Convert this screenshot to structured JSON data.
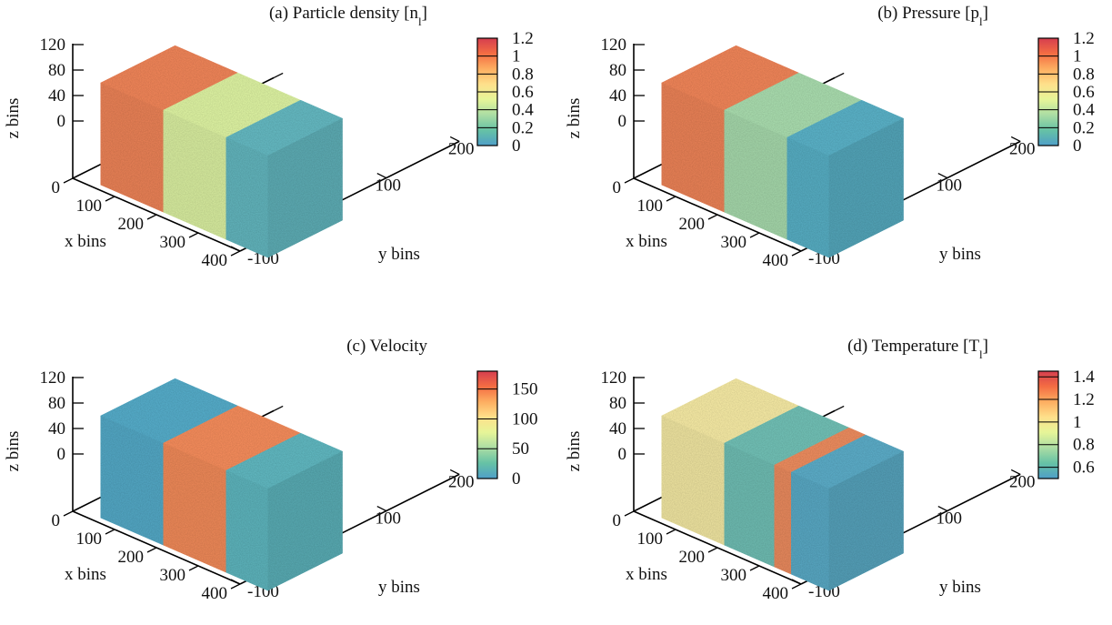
{
  "chart_data": [
    {
      "type": "3d-volume",
      "title": "(a) Particle density [n_l]",
      "title_main": "(a) Particle density [n",
      "title_sub": "l",
      "title_end": "]",
      "xlabel": "x bins",
      "ylabel": "y bins",
      "zlabel": "z bins",
      "x_ticks": [
        "0",
        "100",
        "200",
        "300",
        "400"
      ],
      "y_ticks": [
        "-100",
        "0",
        "100",
        "200"
      ],
      "z_ticks": [
        "0",
        "40",
        "80",
        "120"
      ],
      "colorbar": {
        "ticks": [
          "0",
          "0.2",
          "0.4",
          "0.6",
          "0.8",
          "1",
          "1.2"
        ],
        "range": [
          0,
          1.2
        ]
      },
      "sections": [
        {
          "x_range": [
            0,
            150
          ],
          "value": 1.0,
          "color": "#ec8358"
        },
        {
          "x_range": [
            150,
            300
          ],
          "value": 0.55,
          "color": "#d9eea0"
        },
        {
          "x_range": [
            300,
            400
          ],
          "value": 0.15,
          "color": "#64b6be"
        }
      ]
    },
    {
      "type": "3d-volume",
      "title": "(b) Pressure [p_l]",
      "title_main": "(b) Pressure [p",
      "title_sub": "l",
      "title_end": "]",
      "xlabel": "x bins",
      "ylabel": "y bins",
      "zlabel": "z bins",
      "x_ticks": [
        "0",
        "100",
        "200",
        "300",
        "400"
      ],
      "y_ticks": [
        "-100",
        "0",
        "100",
        "200"
      ],
      "z_ticks": [
        "0",
        "40",
        "80",
        "120"
      ],
      "colorbar": {
        "ticks": [
          "0",
          "0.2",
          "0.4",
          "0.6",
          "0.8",
          "1",
          "1.2"
        ],
        "range": [
          0,
          1.2
        ]
      },
      "sections": [
        {
          "x_range": [
            0,
            150
          ],
          "value": 1.0,
          "color": "#ec8358"
        },
        {
          "x_range": [
            150,
            300
          ],
          "value": 0.35,
          "color": "#a6d8ab"
        },
        {
          "x_range": [
            300,
            400
          ],
          "value": 0.05,
          "color": "#59afc4"
        }
      ]
    },
    {
      "type": "3d-volume",
      "title": "(c) Velocity",
      "title_main": "(c) Velocity",
      "title_sub": "",
      "title_end": "",
      "xlabel": "x bins",
      "ylabel": "y bins",
      "zlabel": "z bins",
      "x_ticks": [
        "0",
        "100",
        "200",
        "300",
        "400"
      ],
      "y_ticks": [
        "-100",
        "0",
        "100",
        "200"
      ],
      "z_ticks": [
        "0",
        "40",
        "80",
        "120"
      ],
      "colorbar": {
        "ticks": [
          "0",
          "50",
          "100",
          "150"
        ],
        "range": [
          0,
          180
        ]
      },
      "sections": [
        {
          "x_range": [
            0,
            150
          ],
          "value": 15,
          "color": "#55a9c6"
        },
        {
          "x_range": [
            150,
            300
          ],
          "value": 150,
          "color": "#f08a5a"
        },
        {
          "x_range": [
            300,
            400
          ],
          "value": 40,
          "color": "#5fb5bd"
        }
      ]
    },
    {
      "type": "3d-volume",
      "title": "(d) Temperature [T_l]",
      "title_main": "(d) Temperature [T",
      "title_sub": "l",
      "title_end": "]",
      "xlabel": "x bins",
      "ylabel": "y bins",
      "zlabel": "z bins",
      "x_ticks": [
        "0",
        "100",
        "200",
        "300",
        "400"
      ],
      "y_ticks": [
        "-100",
        "0",
        "100",
        "200"
      ],
      "z_ticks": [
        "0",
        "40",
        "80",
        "120"
      ],
      "colorbar": {
        "ticks": [
          "0.6",
          "0.8",
          "1",
          "1.2",
          "1.4"
        ],
        "range": [
          0.5,
          1.45
        ]
      },
      "sections": [
        {
          "x_range": [
            0,
            150
          ],
          "value": 1.0,
          "color": "#f1e6a2"
        },
        {
          "x_range": [
            150,
            270
          ],
          "value": 0.7,
          "color": "#70bdb3"
        },
        {
          "x_range": [
            270,
            310
          ],
          "value": 1.3,
          "color": "#e98a5e"
        },
        {
          "x_range": [
            310,
            400
          ],
          "value": 0.65,
          "color": "#5aa9c4"
        }
      ]
    }
  ]
}
